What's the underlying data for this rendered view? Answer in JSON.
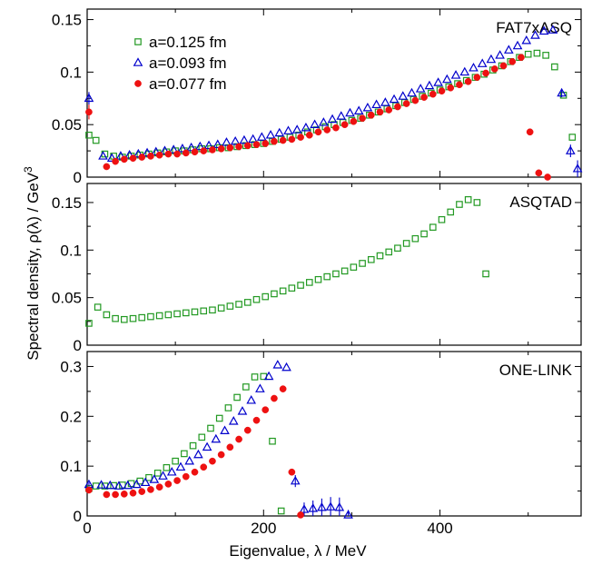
{
  "figure": {
    "xlabel": "Eigenvalue, λ / MeV",
    "ylabel": "Spectral density, ρ(λ) / GeV",
    "ylabel_sup": "3"
  },
  "colors": {
    "a0125": "#229922",
    "a0093": "#0000cc",
    "a0077": "#ee1111"
  },
  "chart_data": [
    {
      "type": "scatter",
      "panel_label": "FAT7xASQ",
      "xlim": [
        0,
        560
      ],
      "ylim": [
        0,
        0.16
      ],
      "xticks": [
        0,
        200,
        400
      ],
      "xticklabels": [
        "",
        "",
        ""
      ],
      "yticks": [
        0,
        0.05,
        0.1,
        0.15
      ],
      "yticklabels": [
        "0",
        "0.05",
        "0.1",
        "0.15"
      ],
      "legend": {
        "placement": "top-left",
        "entries": [
          {
            "label": "a=0.125 fm",
            "series": "a0125",
            "marker": "square-open"
          },
          {
            "label": "a=0.093 fm",
            "series": "a0093",
            "marker": "triangle-open"
          },
          {
            "label": "a=0.077 fm",
            "series": "a0077",
            "marker": "circle-filled"
          }
        ]
      },
      "series": [
        {
          "name": "a=0.125 fm",
          "key": "a0125",
          "marker": "square-open",
          "x": [
            2,
            10,
            20,
            30,
            40,
            50,
            60,
            70,
            80,
            90,
            100,
            110,
            120,
            130,
            140,
            150,
            160,
            170,
            180,
            190,
            200,
            210,
            220,
            230,
            240,
            250,
            260,
            270,
            280,
            290,
            300,
            310,
            320,
            330,
            340,
            350,
            360,
            370,
            380,
            390,
            400,
            410,
            420,
            430,
            440,
            450,
            460,
            470,
            480,
            490,
            500,
            510,
            520,
            530,
            540,
            550
          ],
          "y": [
            0.04,
            0.035,
            0.022,
            0.02,
            0.019,
            0.02,
            0.021,
            0.022,
            0.023,
            0.024,
            0.025,
            0.025,
            0.026,
            0.027,
            0.027,
            0.028,
            0.028,
            0.029,
            0.03,
            0.031,
            0.032,
            0.034,
            0.036,
            0.038,
            0.04,
            0.043,
            0.045,
            0.048,
            0.05,
            0.052,
            0.054,
            0.056,
            0.059,
            0.062,
            0.065,
            0.068,
            0.071,
            0.074,
            0.077,
            0.08,
            0.083,
            0.086,
            0.089,
            0.092,
            0.095,
            0.098,
            0.102,
            0.106,
            0.11,
            0.114,
            0.117,
            0.118,
            0.116,
            0.105,
            0.078,
            0.038
          ]
        },
        {
          "name": "a=0.093 fm",
          "key": "a0093",
          "marker": "triangle-open",
          "x": [
            2,
            18,
            28,
            38,
            48,
            58,
            68,
            78,
            88,
            98,
            108,
            118,
            128,
            138,
            148,
            158,
            168,
            178,
            188,
            198,
            208,
            218,
            228,
            238,
            248,
            258,
            268,
            278,
            288,
            298,
            308,
            318,
            328,
            338,
            348,
            358,
            368,
            378,
            388,
            398,
            408,
            418,
            428,
            438,
            448,
            458,
            468,
            478,
            488,
            498,
            508,
            518,
            528,
            538,
            548,
            556
          ],
          "y": [
            0.075,
            0.02,
            0.018,
            0.02,
            0.021,
            0.022,
            0.023,
            0.024,
            0.025,
            0.026,
            0.027,
            0.028,
            0.029,
            0.03,
            0.031,
            0.033,
            0.034,
            0.035,
            0.036,
            0.038,
            0.04,
            0.042,
            0.044,
            0.045,
            0.047,
            0.05,
            0.052,
            0.055,
            0.058,
            0.061,
            0.063,
            0.066,
            0.069,
            0.071,
            0.074,
            0.077,
            0.08,
            0.084,
            0.087,
            0.09,
            0.093,
            0.097,
            0.1,
            0.104,
            0.108,
            0.112,
            0.116,
            0.121,
            0.125,
            0.13,
            0.135,
            0.139,
            0.14,
            0.08,
            0.025,
            0.008
          ],
          "err": [
            0.006,
            0,
            0,
            0,
            0,
            0,
            0,
            0,
            0,
            0,
            0,
            0,
            0,
            0,
            0,
            0,
            0,
            0,
            0,
            0,
            0,
            0,
            0,
            0,
            0,
            0,
            0,
            0,
            0,
            0,
            0,
            0,
            0,
            0,
            0,
            0,
            0,
            0,
            0,
            0,
            0,
            0,
            0,
            0,
            0,
            0,
            0,
            0,
            0,
            0,
            0,
            0,
            0,
            0.004,
            0.006,
            0.008
          ]
        },
        {
          "name": "a=0.077 fm",
          "key": "a0077",
          "marker": "circle-filled",
          "x": [
            2,
            22,
            32,
            42,
            52,
            62,
            72,
            82,
            92,
            102,
            112,
            122,
            132,
            142,
            152,
            162,
            172,
            182,
            192,
            202,
            212,
            222,
            232,
            242,
            252,
            262,
            272,
            282,
            292,
            302,
            312,
            322,
            332,
            342,
            352,
            362,
            372,
            382,
            392,
            402,
            412,
            422,
            432,
            442,
            452,
            462,
            472,
            482,
            492,
            502,
            512,
            522
          ],
          "y": [
            0.062,
            0.01,
            0.015,
            0.017,
            0.018,
            0.019,
            0.02,
            0.021,
            0.022,
            0.022,
            0.023,
            0.024,
            0.025,
            0.026,
            0.027,
            0.028,
            0.029,
            0.03,
            0.031,
            0.032,
            0.034,
            0.035,
            0.036,
            0.038,
            0.04,
            0.043,
            0.045,
            0.047,
            0.05,
            0.053,
            0.056,
            0.059,
            0.062,
            0.064,
            0.067,
            0.07,
            0.073,
            0.076,
            0.079,
            0.082,
            0.085,
            0.088,
            0.091,
            0.095,
            0.099,
            0.103,
            0.106,
            0.11,
            0.114,
            0.043,
            0.004,
            0.0
          ],
          "err": [
            0.007,
            0,
            0,
            0,
            0,
            0,
            0,
            0,
            0,
            0,
            0,
            0,
            0,
            0,
            0,
            0,
            0,
            0,
            0,
            0,
            0,
            0,
            0,
            0,
            0,
            0,
            0,
            0,
            0,
            0,
            0,
            0,
            0,
            0,
            0,
            0,
            0,
            0,
            0,
            0,
            0,
            0,
            0,
            0,
            0,
            0,
            0,
            0,
            0,
            0,
            0,
            0
          ]
        }
      ]
    },
    {
      "type": "scatter",
      "panel_label": "ASQTAD",
      "xlim": [
        0,
        560
      ],
      "ylim": [
        0,
        0.17
      ],
      "xticks": [
        0,
        200,
        400
      ],
      "xticklabels": [
        "",
        "",
        ""
      ],
      "yticks": [
        0,
        0.05,
        0.1,
        0.15
      ],
      "yticklabels": [
        "0",
        "0.05",
        "0.1",
        "0.15"
      ],
      "series": [
        {
          "name": "a=0.125 fm",
          "key": "a0125",
          "marker": "square-open",
          "x": [
            2,
            12,
            22,
            32,
            42,
            52,
            62,
            72,
            82,
            92,
            102,
            112,
            122,
            132,
            142,
            152,
            162,
            172,
            182,
            192,
            202,
            212,
            222,
            232,
            242,
            252,
            262,
            272,
            282,
            292,
            302,
            312,
            322,
            332,
            342,
            352,
            362,
            372,
            382,
            392,
            402,
            412,
            422,
            432,
            442,
            452
          ],
          "y": [
            0.023,
            0.04,
            0.032,
            0.028,
            0.027,
            0.028,
            0.029,
            0.03,
            0.031,
            0.032,
            0.033,
            0.034,
            0.035,
            0.036,
            0.037,
            0.039,
            0.041,
            0.043,
            0.045,
            0.048,
            0.051,
            0.054,
            0.057,
            0.06,
            0.063,
            0.066,
            0.069,
            0.072,
            0.075,
            0.078,
            0.082,
            0.086,
            0.09,
            0.094,
            0.098,
            0.102,
            0.107,
            0.112,
            0.117,
            0.124,
            0.132,
            0.14,
            0.148,
            0.153,
            0.15,
            0.075
          ],
          "err": [
            0,
            0,
            0,
            0,
            0,
            0,
            0,
            0,
            0,
            0,
            0,
            0,
            0,
            0,
            0,
            0,
            0,
            0,
            0,
            0,
            0,
            0,
            0,
            0,
            0,
            0,
            0,
            0,
            0,
            0,
            0,
            0,
            0,
            0,
            0,
            0,
            0,
            0,
            0,
            0,
            0,
            0,
            0,
            0,
            0,
            0
          ]
        }
      ]
    },
    {
      "type": "scatter",
      "panel_label": "ONE-LINK",
      "xlim": [
        0,
        560
      ],
      "ylim": [
        0,
        0.33
      ],
      "xticks": [
        0,
        200,
        400
      ],
      "xticklabels": [
        "0",
        "200",
        "400"
      ],
      "yticks": [
        0,
        0.1,
        0.2,
        0.3
      ],
      "yticklabels": [
        "0",
        "0.1",
        "0.2",
        "0.3"
      ],
      "series": [
        {
          "name": "a=0.125 fm",
          "key": "a0125",
          "marker": "square-open",
          "x": [
            2,
            10,
            20,
            30,
            40,
            50,
            60,
            70,
            80,
            90,
            100,
            110,
            120,
            130,
            140,
            150,
            160,
            170,
            180,
            190,
            200,
            210,
            220
          ],
          "y": [
            0.055,
            0.06,
            0.06,
            0.061,
            0.062,
            0.065,
            0.07,
            0.077,
            0.086,
            0.097,
            0.11,
            0.125,
            0.141,
            0.158,
            0.176,
            0.196,
            0.217,
            0.238,
            0.259,
            0.279,
            0.28,
            0.15,
            0.01
          ]
        },
        {
          "name": "a=0.093 fm",
          "key": "a0093",
          "marker": "triangle-open",
          "x": [
            2,
            16,
            26,
            36,
            46,
            56,
            66,
            76,
            86,
            96,
            106,
            116,
            126,
            136,
            146,
            156,
            166,
            176,
            186,
            196,
            206,
            216,
            226,
            236,
            246,
            256,
            266,
            276,
            286,
            296
          ],
          "y": [
            0.063,
            0.062,
            0.061,
            0.06,
            0.061,
            0.063,
            0.067,
            0.073,
            0.08,
            0.088,
            0.098,
            0.11,
            0.123,
            0.138,
            0.154,
            0.171,
            0.19,
            0.21,
            0.232,
            0.255,
            0.28,
            0.303,
            0.298,
            0.07,
            0.013,
            0.015,
            0.017,
            0.018,
            0.017,
            0.002
          ],
          "err": [
            0.004,
            0,
            0,
            0,
            0,
            0,
            0,
            0,
            0,
            0,
            0,
            0,
            0,
            0,
            0,
            0,
            0,
            0,
            0,
            0,
            0,
            0,
            0,
            0.012,
            0.014,
            0.016,
            0.018,
            0.02,
            0.02,
            0.01
          ]
        },
        {
          "name": "a=0.077 fm",
          "key": "a0077",
          "marker": "circle-filled",
          "x": [
            2,
            22,
            32,
            42,
            52,
            62,
            72,
            82,
            92,
            102,
            112,
            122,
            132,
            142,
            152,
            162,
            172,
            182,
            192,
            202,
            212,
            222,
            232,
            242
          ],
          "y": [
            0.052,
            0.043,
            0.043,
            0.044,
            0.046,
            0.049,
            0.053,
            0.058,
            0.064,
            0.071,
            0.079,
            0.088,
            0.098,
            0.11,
            0.123,
            0.138,
            0.154,
            0.172,
            0.192,
            0.213,
            0.236,
            0.255,
            0.088,
            0.002
          ]
        }
      ]
    }
  ]
}
